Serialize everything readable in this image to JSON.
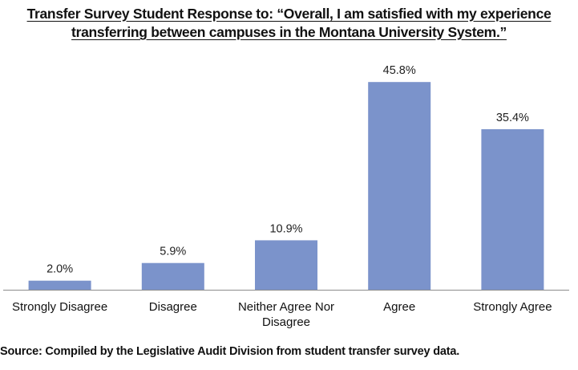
{
  "chart_data": {
    "type": "bar",
    "title_line1": "Transfer Survey Student Response to: “Overall, I am satisfied with my experience",
    "title_line2": "transferring between campuses in the Montana University System.”",
    "categories": [
      [
        "Strongly Disagree"
      ],
      [
        "Disagree"
      ],
      [
        "Neither Agree Nor",
        "Disagree"
      ],
      [
        "Agree"
      ],
      [
        "Strongly Agree"
      ]
    ],
    "values": [
      2.0,
      5.9,
      10.9,
      45.8,
      35.4
    ],
    "value_labels": [
      "2.0%",
      "5.9%",
      "10.9%",
      "45.8%",
      "35.4%"
    ],
    "ylim": [
      0,
      50
    ],
    "grid": false,
    "bar_color": "#7b93cb",
    "axis_color": "#8c8c8c"
  },
  "footer": {
    "source": "Source:  Compiled by the Legislative Audit Division from student transfer survey data."
  }
}
